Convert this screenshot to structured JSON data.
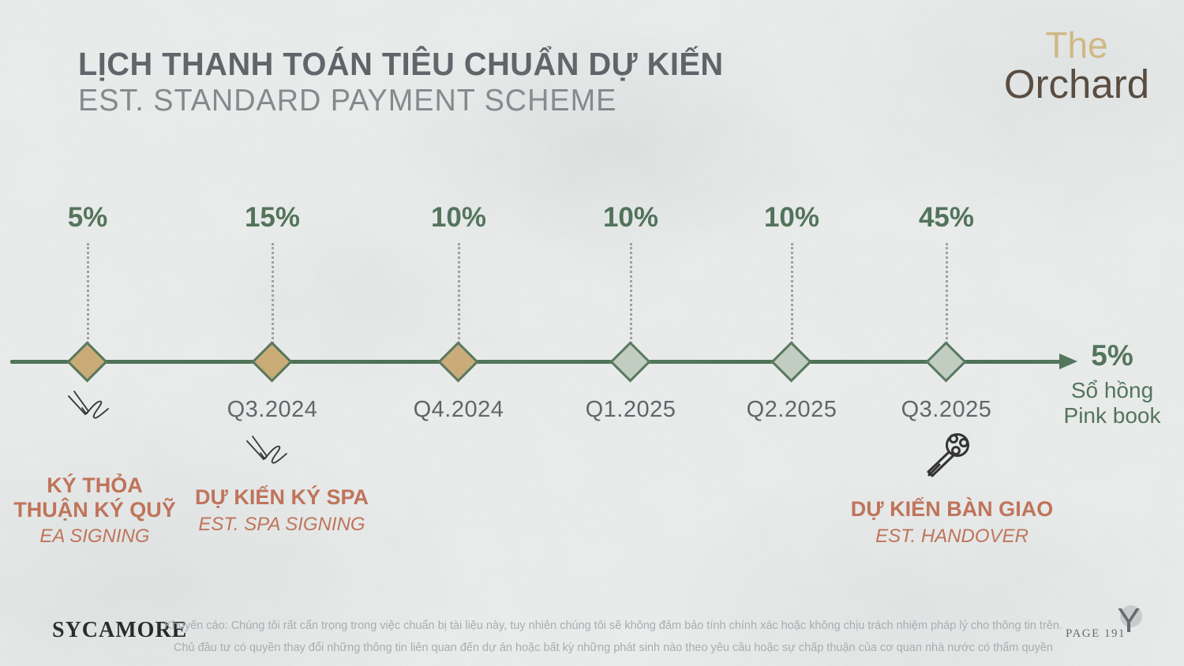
{
  "slide": {
    "title_vi": "LỊCH THANH TOÁN TIÊU CHUẨN DỰ KIẾN",
    "title_en": "EST. STANDARD PAYMENT SCHEME"
  },
  "brand": {
    "line1": "The",
    "line2": "Orchard"
  },
  "timeline": {
    "milestones": [
      {
        "percent": "5%",
        "date": "",
        "icon": "pen",
        "variant": "gold",
        "label_vi": "KÝ THỎA\nTHUẬN KÝ QUỸ",
        "label_en": "EA SIGNING"
      },
      {
        "percent": "15%",
        "date": "Q3.2024",
        "icon": "pen",
        "variant": "gold",
        "label_vi": "DỰ KIẾN KÝ SPA",
        "label_en": "EST. SPA SIGNING"
      },
      {
        "percent": "10%",
        "date": "Q4.2024",
        "icon": null,
        "variant": "gold",
        "label_vi": "",
        "label_en": ""
      },
      {
        "percent": "10%",
        "date": "Q1.2025",
        "icon": null,
        "variant": "sage",
        "label_vi": "",
        "label_en": ""
      },
      {
        "percent": "10%",
        "date": "Q2.2025",
        "icon": null,
        "variant": "sage",
        "label_vi": "",
        "label_en": ""
      },
      {
        "percent": "45%",
        "date": "Q3.2025",
        "icon": "key",
        "variant": "sage",
        "label_vi": "DỰ KIẾN BÀN GIAO",
        "label_en": "EST. HANDOVER"
      }
    ],
    "terminal": {
      "percent": "5%",
      "label_vi": "Sổ hồng",
      "label_en": "Pink book"
    }
  },
  "footer": {
    "logo": "SYCAMORE",
    "disclaimer_line1": "Khuyến cáo: Chúng tôi rất cẩn trọng trong việc chuẩn bị tài liệu này, tuy nhiên chúng tôi sẽ không đảm bảo tính chính xác hoặc không chịu trách nhiệm pháp lý cho thông tin trên.",
    "disclaimer_line2": "Chủ đầu tư có quyền thay đổi những thông tin liên quan đến dự án hoặc bất kỳ những phát sinh nào theo yêu cầu hoặc sự chấp thuận của cơ quan nhà nước có thẩm quyền",
    "page": "PAGE 191",
    "corner_mark": "Y"
  },
  "colors": {
    "green_text": "#45694E",
    "green_line": "#41684A",
    "gold_fill": "#CBA96E",
    "sage_fill": "#C3CFC2",
    "terracotta": "#C0694C",
    "title_gray": "#54585D",
    "subtitle_gray": "#7E8286",
    "brand_gold": "#D2B87C",
    "brand_brown": "#4A3C2F"
  }
}
